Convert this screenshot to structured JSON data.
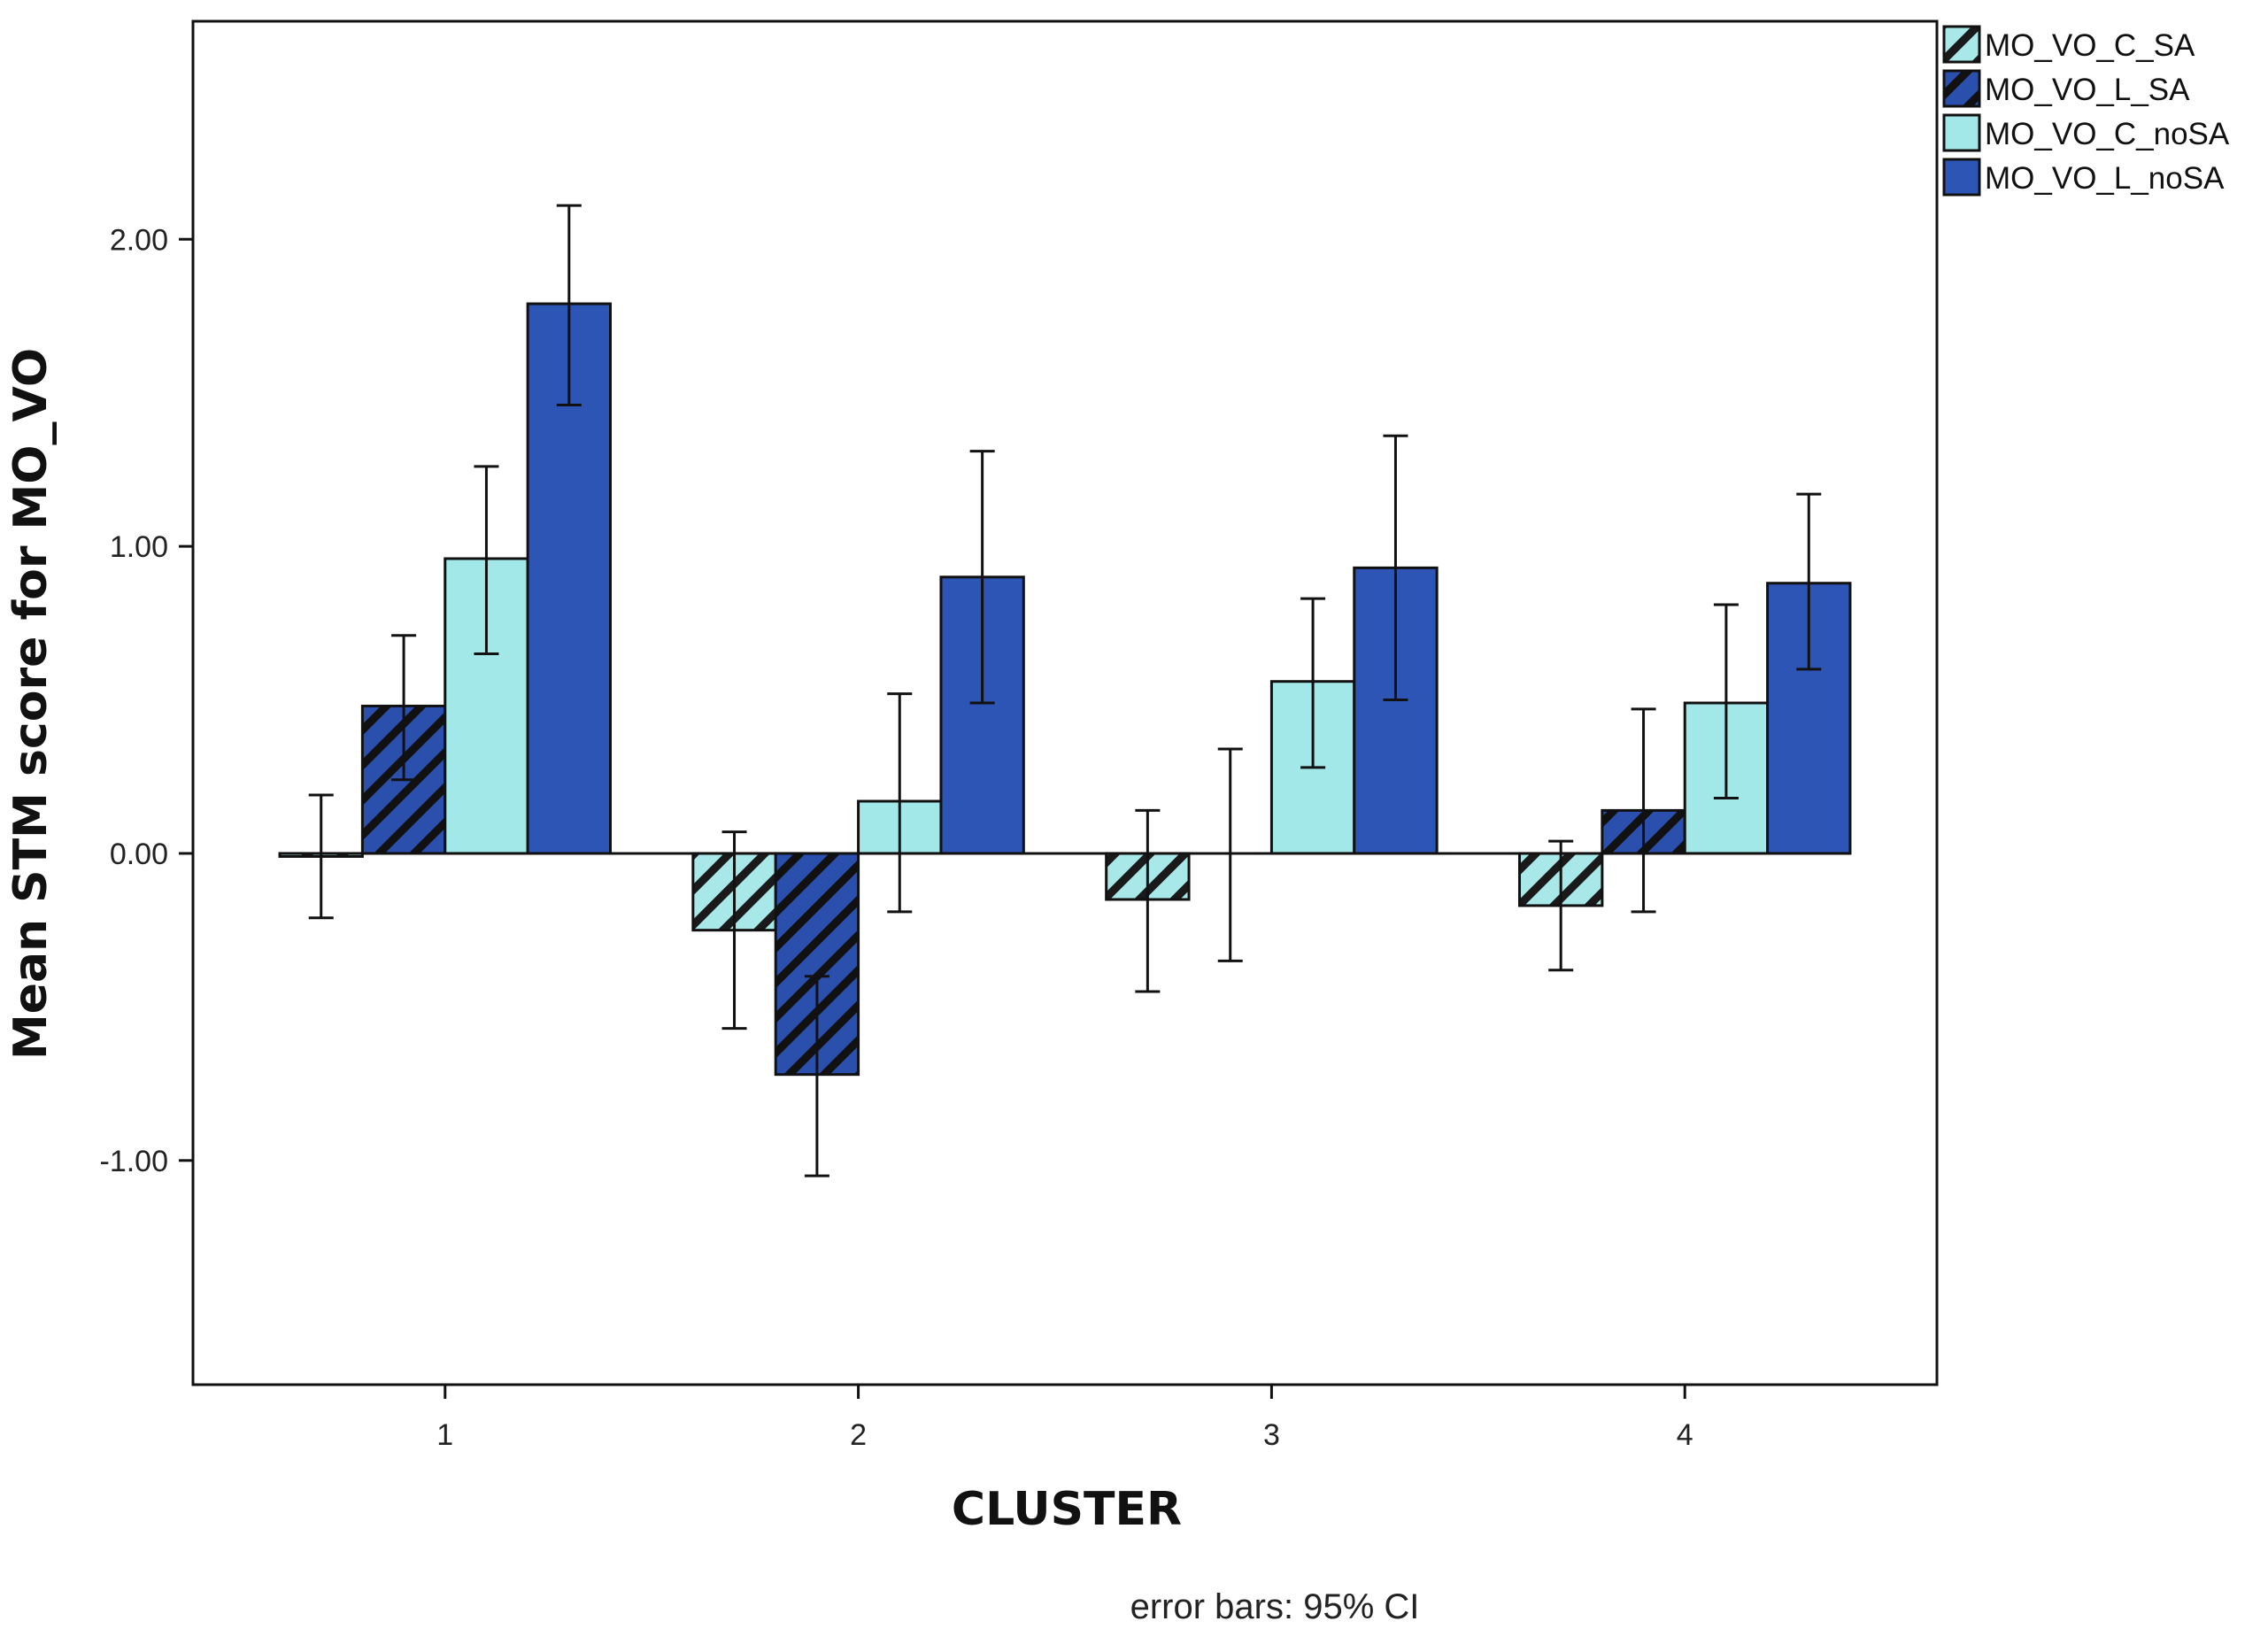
{
  "chart_data": {
    "type": "bar",
    "xlabel": "CLUSTER",
    "ylabel": "Mean STM score for MO_VO",
    "note": "error bars: 95% CI",
    "categories": [
      "1",
      "2",
      "3",
      "4"
    ],
    "ylim": [
      -1.73,
      2.71
    ],
    "yticks": [
      -1.0,
      0.0,
      1.0,
      2.0
    ],
    "ytick_labels": [
      "-1.00",
      "0.00",
      "1.00",
      "2.00"
    ],
    "grid": false,
    "legend_position": "top-right, outside plot",
    "series": [
      {
        "name": "MO_VO_C_SA",
        "fill": "#a8e8e8",
        "hatched": true,
        "values": [
          -0.01,
          -0.25,
          -0.15,
          -0.17
        ],
        "ci_low": [
          -0.21,
          -0.57,
          -0.45,
          -0.38
        ],
        "ci_high": [
          0.19,
          0.07,
          0.14,
          0.04
        ]
      },
      {
        "name": "MO_VO_L_SA",
        "fill": "#2b4fac",
        "hatched": true,
        "values": [
          0.48,
          -0.72,
          0.0,
          0.14
        ],
        "ci_low": [
          0.24,
          -1.05,
          -0.35,
          -0.19
        ],
        "ci_high": [
          0.71,
          -0.4,
          0.34,
          0.47
        ]
      },
      {
        "name": "MO_VO_C_noSA",
        "fill": "#a2e8e8",
        "hatched": false,
        "values": [
          0.96,
          0.17,
          0.56,
          0.49
        ],
        "ci_low": [
          0.65,
          -0.19,
          0.28,
          0.18
        ],
        "ci_high": [
          1.26,
          0.52,
          0.83,
          0.81
        ]
      },
      {
        "name": "MO_VO_L_noSA",
        "fill": "#2d55b5",
        "hatched": false,
        "values": [
          1.79,
          0.9,
          0.93,
          0.88
        ],
        "ci_low": [
          1.46,
          0.49,
          0.5,
          0.6
        ],
        "ci_high": [
          2.11,
          1.31,
          1.36,
          1.17
        ]
      }
    ]
  }
}
